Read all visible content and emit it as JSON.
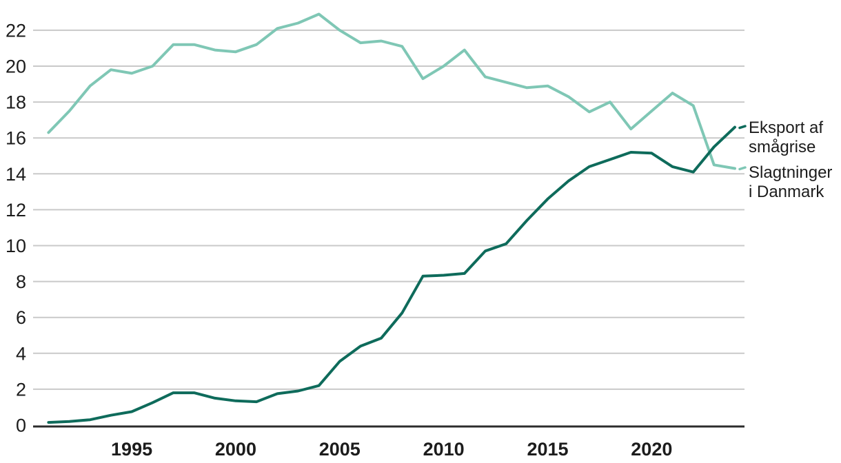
{
  "chart_data": {
    "type": "line",
    "title": "",
    "xlabel": "",
    "ylabel": "",
    "x": [
      1991,
      1992,
      1993,
      1994,
      1995,
      1996,
      1997,
      1998,
      1999,
      2000,
      2001,
      2002,
      2003,
      2004,
      2005,
      2006,
      2007,
      2008,
      2009,
      2010,
      2011,
      2012,
      2013,
      2014,
      2015,
      2016,
      2017,
      2018,
      2019,
      2020,
      2021,
      2022,
      2023,
      2024
    ],
    "series": [
      {
        "name": "Eksport af smågrise",
        "color": "#0e6b5b",
        "values": [
          0.15,
          0.2,
          0.3,
          0.55,
          0.75,
          1.25,
          1.8,
          1.8,
          1.5,
          1.35,
          1.3,
          1.75,
          1.9,
          2.2,
          3.55,
          4.4,
          4.85,
          6.25,
          8.3,
          8.35,
          8.45,
          9.7,
          10.1,
          11.4,
          12.6,
          13.6,
          14.4,
          14.8,
          15.2,
          15.15,
          14.4,
          14.1,
          15.5,
          16.6
        ]
      },
      {
        "name": "Slagtninger i Danmark",
        "color": "#7fc7b5",
        "values": [
          16.3,
          17.5,
          18.9,
          19.8,
          19.6,
          20.0,
          21.2,
          21.2,
          20.9,
          20.8,
          21.2,
          22.1,
          22.4,
          22.9,
          22.0,
          21.3,
          21.4,
          21.1,
          19.3,
          20.0,
          20.9,
          19.4,
          19.1,
          18.8,
          18.9,
          18.3,
          17.45,
          18.0,
          16.5,
          17.5,
          18.5,
          17.8,
          14.5,
          14.3
        ]
      }
    ],
    "ylim": [
      0,
      23
    ],
    "yticks": [
      0,
      2,
      4,
      6,
      8,
      10,
      12,
      14,
      16,
      18,
      20,
      22
    ],
    "xticks": [
      1995,
      2000,
      2005,
      2010,
      2015,
      2020
    ],
    "grid": true,
    "grid_color": "#c9c9c9",
    "axis_color": "#2b2b2b",
    "text_color": "#1c1c1c",
    "legend_position": "right-of-line-ends"
  }
}
